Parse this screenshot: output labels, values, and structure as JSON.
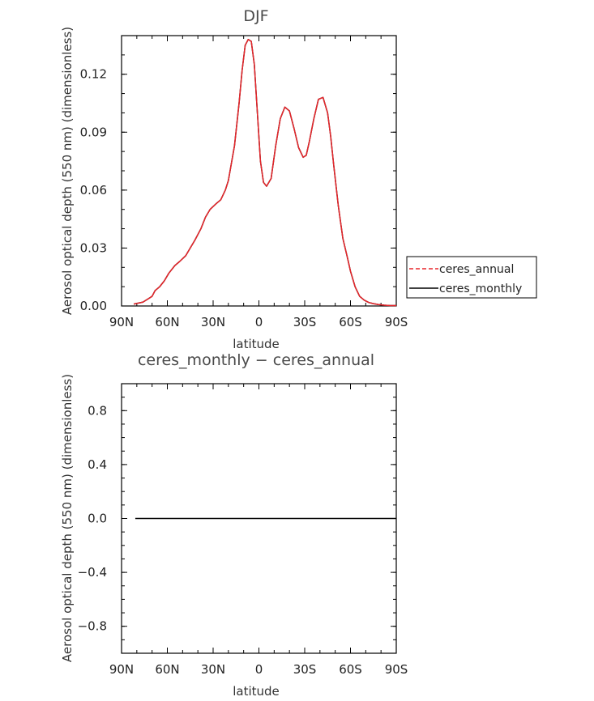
{
  "chart_data": [
    {
      "type": "line",
      "title": "DJF",
      "xlabel": "latitude",
      "ylabel": "Aerosol optical depth (550 nm) (dimensionless)",
      "xlim": [
        90,
        -90
      ],
      "ylim": [
        0,
        0.14
      ],
      "x_ticks": [
        90,
        60,
        30,
        0,
        -30,
        -60,
        -90
      ],
      "x_tick_labels": [
        "90N",
        "60N",
        "30N",
        "0",
        "30S",
        "60S",
        "90S"
      ],
      "y_ticks": [
        0,
        0.03,
        0.06,
        0.09,
        0.12
      ],
      "y_tick_labels": [
        "0.00",
        "0.03",
        "0.06",
        "0.09",
        "0.12"
      ],
      "legend": {
        "placement": "outside-right",
        "entries": [
          {
            "label": "ceres_annual",
            "color": "#e8262b",
            "style": "dashed"
          },
          {
            "label": "ceres_monthly",
            "color": "#000000",
            "style": "solid"
          }
        ]
      },
      "x": [
        82,
        76,
        72,
        70,
        68,
        65,
        62,
        59,
        55,
        52,
        48,
        45,
        42,
        38,
        35,
        32,
        28,
        25,
        22,
        20,
        16,
        13,
        11,
        9,
        7,
        5,
        3,
        1,
        -1,
        -3,
        -5,
        -8,
        -11,
        -14,
        -17,
        -20,
        -23,
        -26,
        -29,
        -31,
        -33,
        -36,
        -39,
        -42,
        -45,
        -47,
        -49,
        -52,
        -55,
        -58,
        -60,
        -63,
        -66,
        -69,
        -72,
        -75,
        -78,
        -82,
        -86,
        -90
      ],
      "series": [
        {
          "name": "ceres_annual",
          "values": [
            0.001,
            0.002,
            0.004,
            0.005,
            0.008,
            0.01,
            0.013,
            0.017,
            0.021,
            0.023,
            0.026,
            0.03,
            0.034,
            0.04,
            0.046,
            0.05,
            0.053,
            0.055,
            0.06,
            0.065,
            0.083,
            0.105,
            0.122,
            0.135,
            0.138,
            0.137,
            0.125,
            0.1,
            0.075,
            0.064,
            0.062,
            0.066,
            0.083,
            0.097,
            0.103,
            0.101,
            0.092,
            0.082,
            0.077,
            0.078,
            0.085,
            0.097,
            0.107,
            0.108,
            0.1,
            0.088,
            0.073,
            0.052,
            0.035,
            0.025,
            0.018,
            0.01,
            0.005,
            0.003,
            0.0018,
            0.0012,
            0.0008,
            0.0004,
            0.0002,
            0.0002
          ]
        },
        {
          "name": "ceres_monthly",
          "values": [
            0.001,
            0.002,
            0.004,
            0.005,
            0.008,
            0.01,
            0.013,
            0.017,
            0.021,
            0.023,
            0.026,
            0.03,
            0.034,
            0.04,
            0.046,
            0.05,
            0.053,
            0.055,
            0.06,
            0.065,
            0.083,
            0.105,
            0.122,
            0.135,
            0.138,
            0.137,
            0.125,
            0.1,
            0.075,
            0.064,
            0.062,
            0.066,
            0.083,
            0.097,
            0.103,
            0.101,
            0.092,
            0.082,
            0.077,
            0.078,
            0.085,
            0.097,
            0.107,
            0.108,
            0.1,
            0.088,
            0.073,
            0.052,
            0.035,
            0.025,
            0.018,
            0.01,
            0.005,
            0.003,
            0.0018,
            0.0012,
            0.0008,
            0.0004,
            0.0002,
            0.0002
          ]
        }
      ]
    },
    {
      "type": "line",
      "title": "ceres_monthly − ceres_annual",
      "xlabel": "latitude",
      "ylabel": "Aerosol optical depth (550 nm) (dimensionless)",
      "xlim": [
        90,
        -90
      ],
      "ylim": [
        -1,
        1
      ],
      "x_ticks": [
        90,
        60,
        30,
        0,
        -30,
        -60,
        -90
      ],
      "x_tick_labels": [
        "90N",
        "60N",
        "30N",
        "0",
        "30S",
        "60S",
        "90S"
      ],
      "y_ticks": [
        -0.8,
        -0.4,
        0,
        0.4,
        0.8
      ],
      "y_tick_labels": [
        "−0.8",
        "−0.4",
        "0.0",
        "0.4",
        "0.8"
      ],
      "x": [
        81,
        -90
      ],
      "series": [
        {
          "color": "#000000",
          "values": [
            0,
            0
          ]
        }
      ]
    }
  ]
}
